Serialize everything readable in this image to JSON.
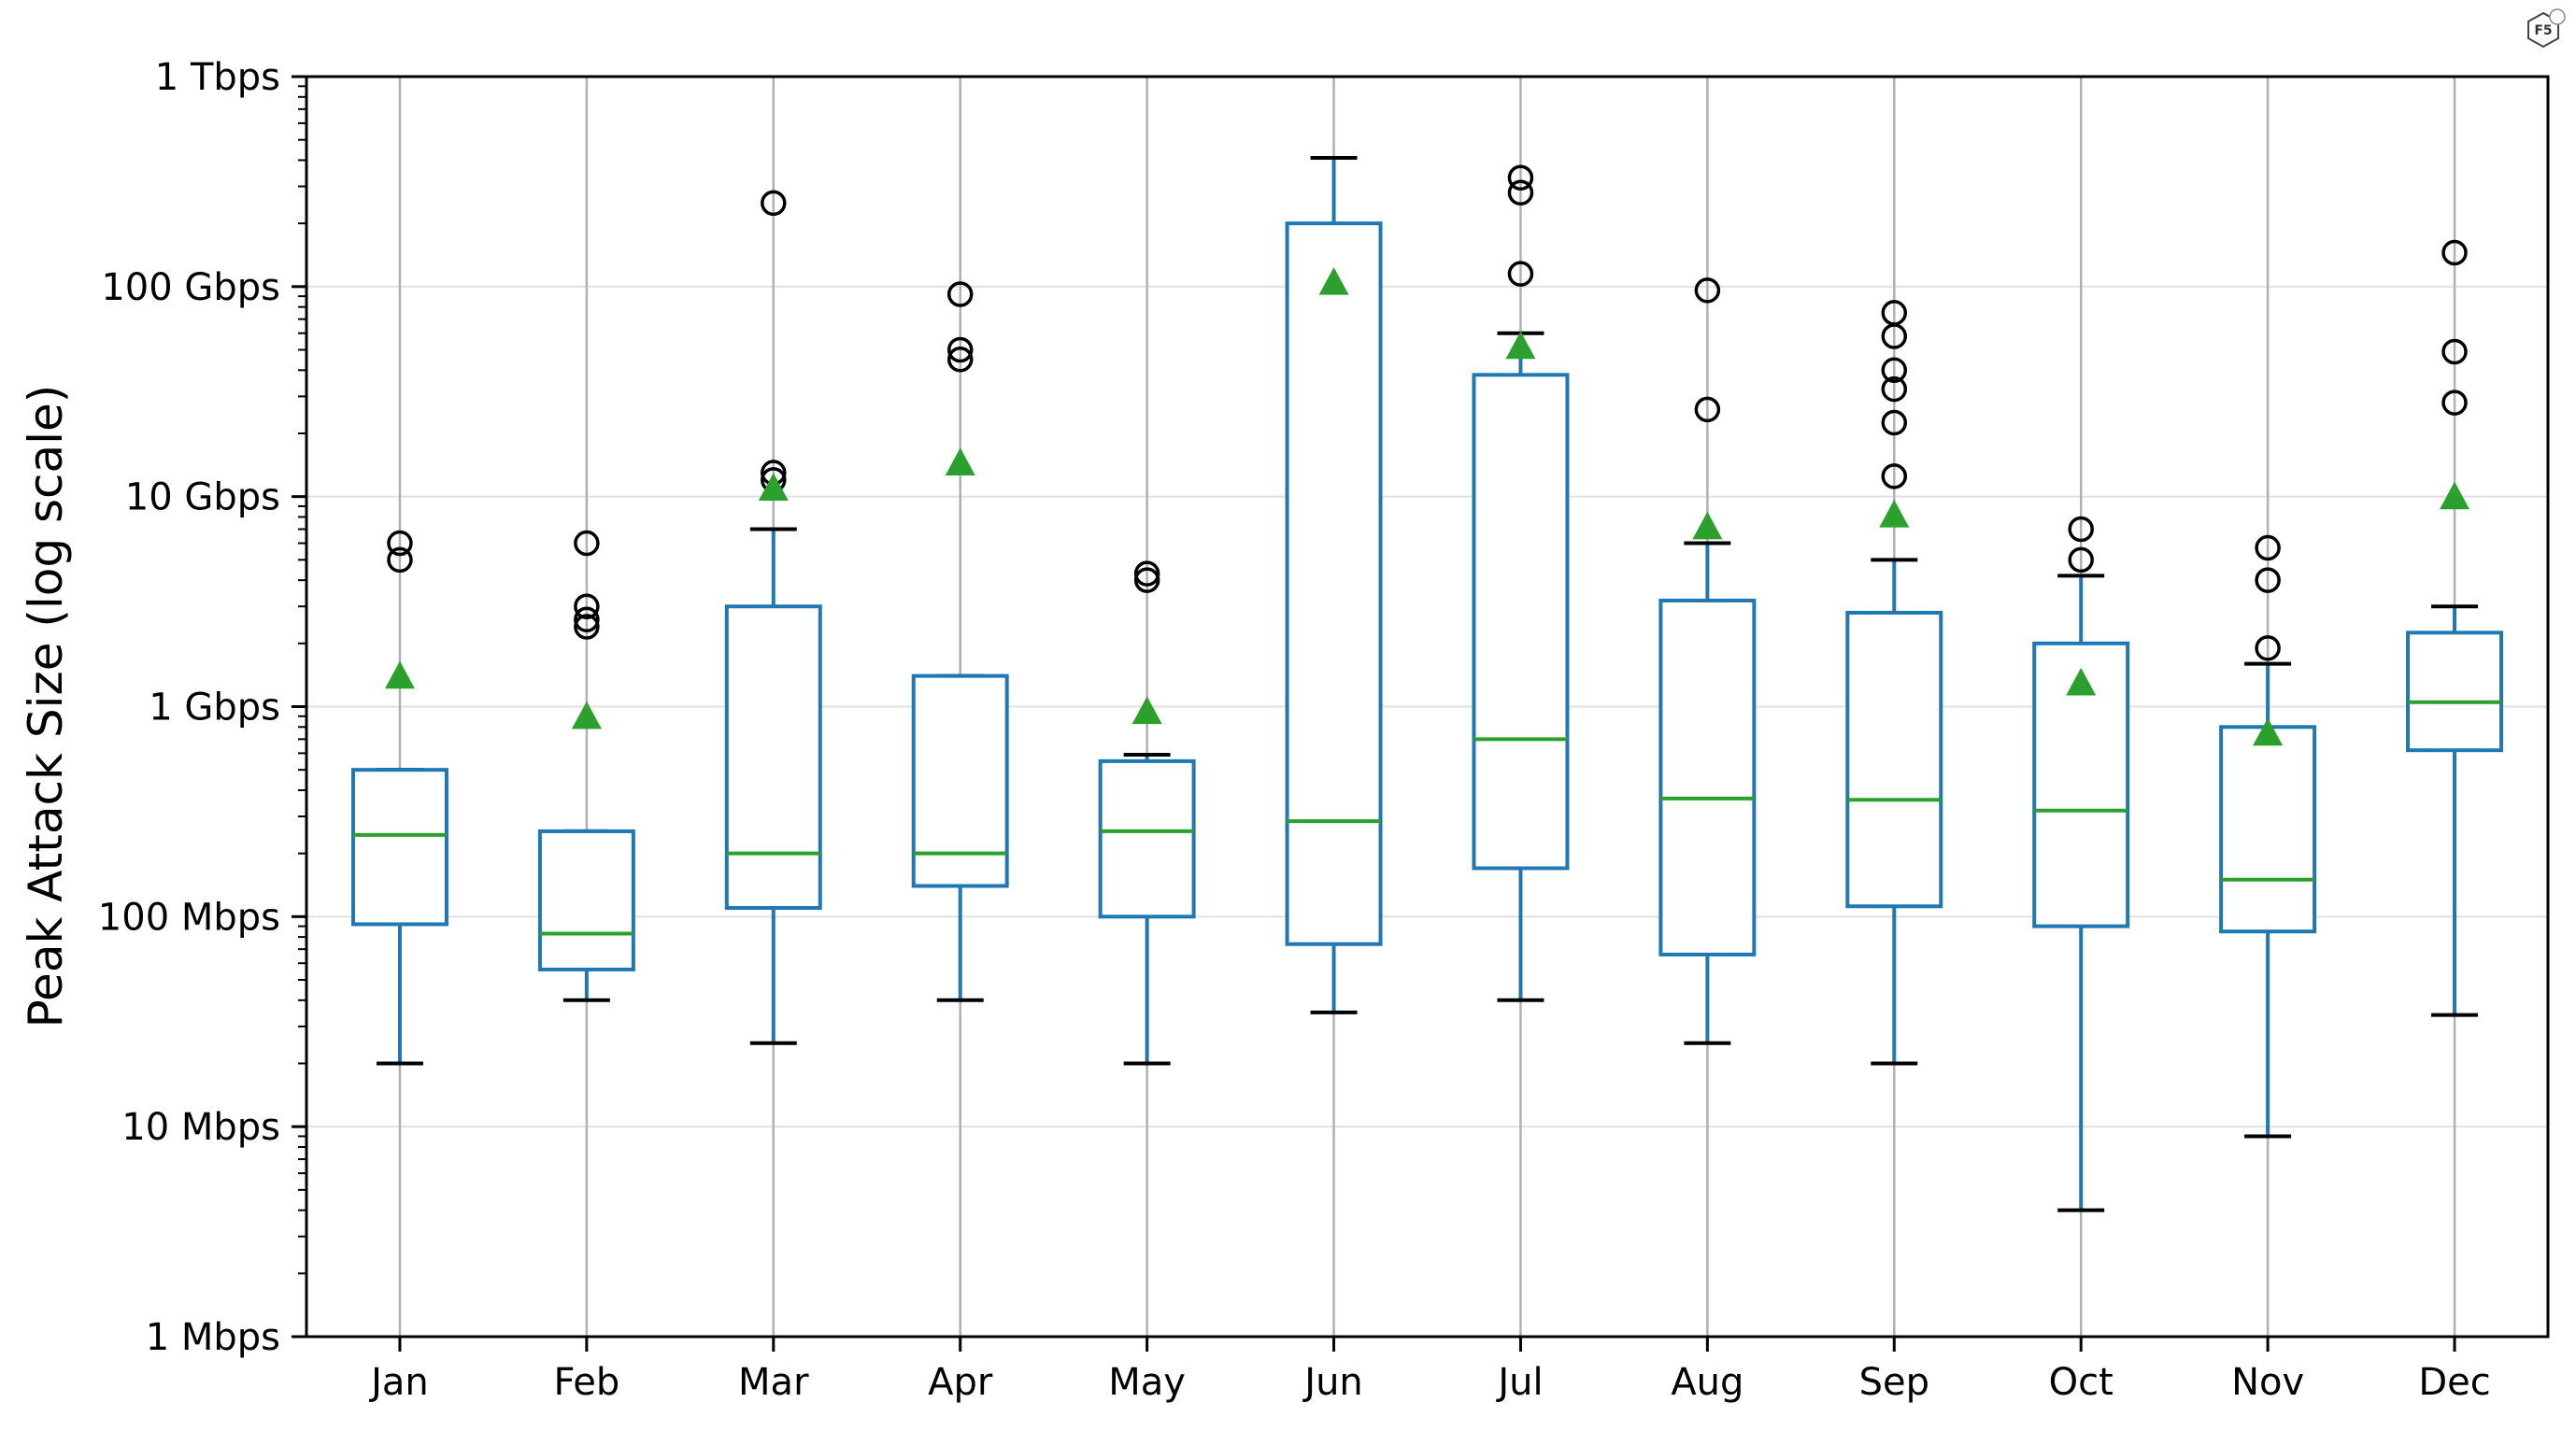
{
  "chart_data": {
    "type": "box",
    "ylabel": "Peak Attack Size (log scale)",
    "yscale": "log",
    "ylim_mbps": [
      1,
      1000000
    ],
    "y_ticks": [
      {
        "value": 1,
        "label": "1 Mbps"
      },
      {
        "value": 10,
        "label": "10 Mbps"
      },
      {
        "value": 100,
        "label": "100 Mbps"
      },
      {
        "value": 1000,
        "label": "1 Gbps"
      },
      {
        "value": 10000,
        "label": "10 Gbps"
      },
      {
        "value": 100000,
        "label": "100 Gbps"
      },
      {
        "value": 1000000,
        "label": "1 Tbps"
      }
    ],
    "grid": true,
    "categories": [
      "Jan",
      "Feb",
      "Mar",
      "Apr",
      "May",
      "Jun",
      "Jul",
      "Aug",
      "Sep",
      "Oct",
      "Nov",
      "Dec"
    ],
    "boxes": [
      {
        "whisker_low": 20,
        "q1": 92,
        "median": 245,
        "q3": 500,
        "whisker_high": 500,
        "mean": 1400,
        "outliers": [
          5000,
          6000
        ]
      },
      {
        "whisker_low": 40,
        "q1": 56,
        "median": 83,
        "q3": 255,
        "whisker_high": 255,
        "mean": 900,
        "outliers": [
          2400,
          2600,
          3000,
          6000
        ]
      },
      {
        "whisker_low": 25,
        "q1": 110,
        "median": 200,
        "q3": 3000,
        "whisker_high": 7000,
        "mean": 11000,
        "outliers": [
          12000,
          13000,
          250000
        ]
      },
      {
        "whisker_low": 40,
        "q1": 140,
        "median": 200,
        "q3": 1400,
        "whisker_high": 1400,
        "mean": 14500,
        "outliers": [
          45000,
          50000,
          92000
        ]
      },
      {
        "whisker_low": 20,
        "q1": 100,
        "median": 255,
        "q3": 550,
        "whisker_high": 590,
        "mean": 950,
        "outliers": [
          4000,
          4300
        ]
      },
      {
        "whisker_low": 35,
        "q1": 74,
        "median": 285,
        "q3": 200000,
        "whisker_high": 410000,
        "mean": 105000,
        "outliers": []
      },
      {
        "whisker_low": 40,
        "q1": 170,
        "median": 700,
        "q3": 38000,
        "whisker_high": 60000,
        "mean": 52000,
        "outliers": [
          115000,
          280000,
          330000
        ]
      },
      {
        "whisker_low": 25,
        "q1": 66,
        "median": 365,
        "q3": 3200,
        "whisker_high": 6000,
        "mean": 7200,
        "outliers": [
          26000,
          96000
        ]
      },
      {
        "whisker_low": 20,
        "q1": 112,
        "median": 360,
        "q3": 2800,
        "whisker_high": 5000,
        "mean": 8200,
        "outliers": [
          12500,
          22500,
          32500,
          40000,
          58000,
          75000
        ]
      },
      {
        "whisker_low": 4,
        "q1": 90,
        "median": 320,
        "q3": 2000,
        "whisker_high": 4200,
        "mean": 1300,
        "outliers": [
          5000,
          7000
        ]
      },
      {
        "whisker_low": 9,
        "q1": 85,
        "median": 150,
        "q3": 800,
        "whisker_high": 1600,
        "mean": 750,
        "outliers": [
          1900,
          4000,
          5700
        ]
      },
      {
        "whisker_low": 34,
        "q1": 620,
        "median": 1050,
        "q3": 2250,
        "whisker_high": 3000,
        "mean": 10000,
        "outliers": [
          28000,
          49000,
          145000
        ]
      }
    ],
    "colors": {
      "box": "#1f77b4",
      "median": "#2ca02c",
      "mean_marker": "#2ca02c",
      "whisker_cap": "#000000",
      "outlier": "#000000",
      "grid": "#b0b0b0"
    }
  },
  "logo": {
    "text": "F5"
  }
}
